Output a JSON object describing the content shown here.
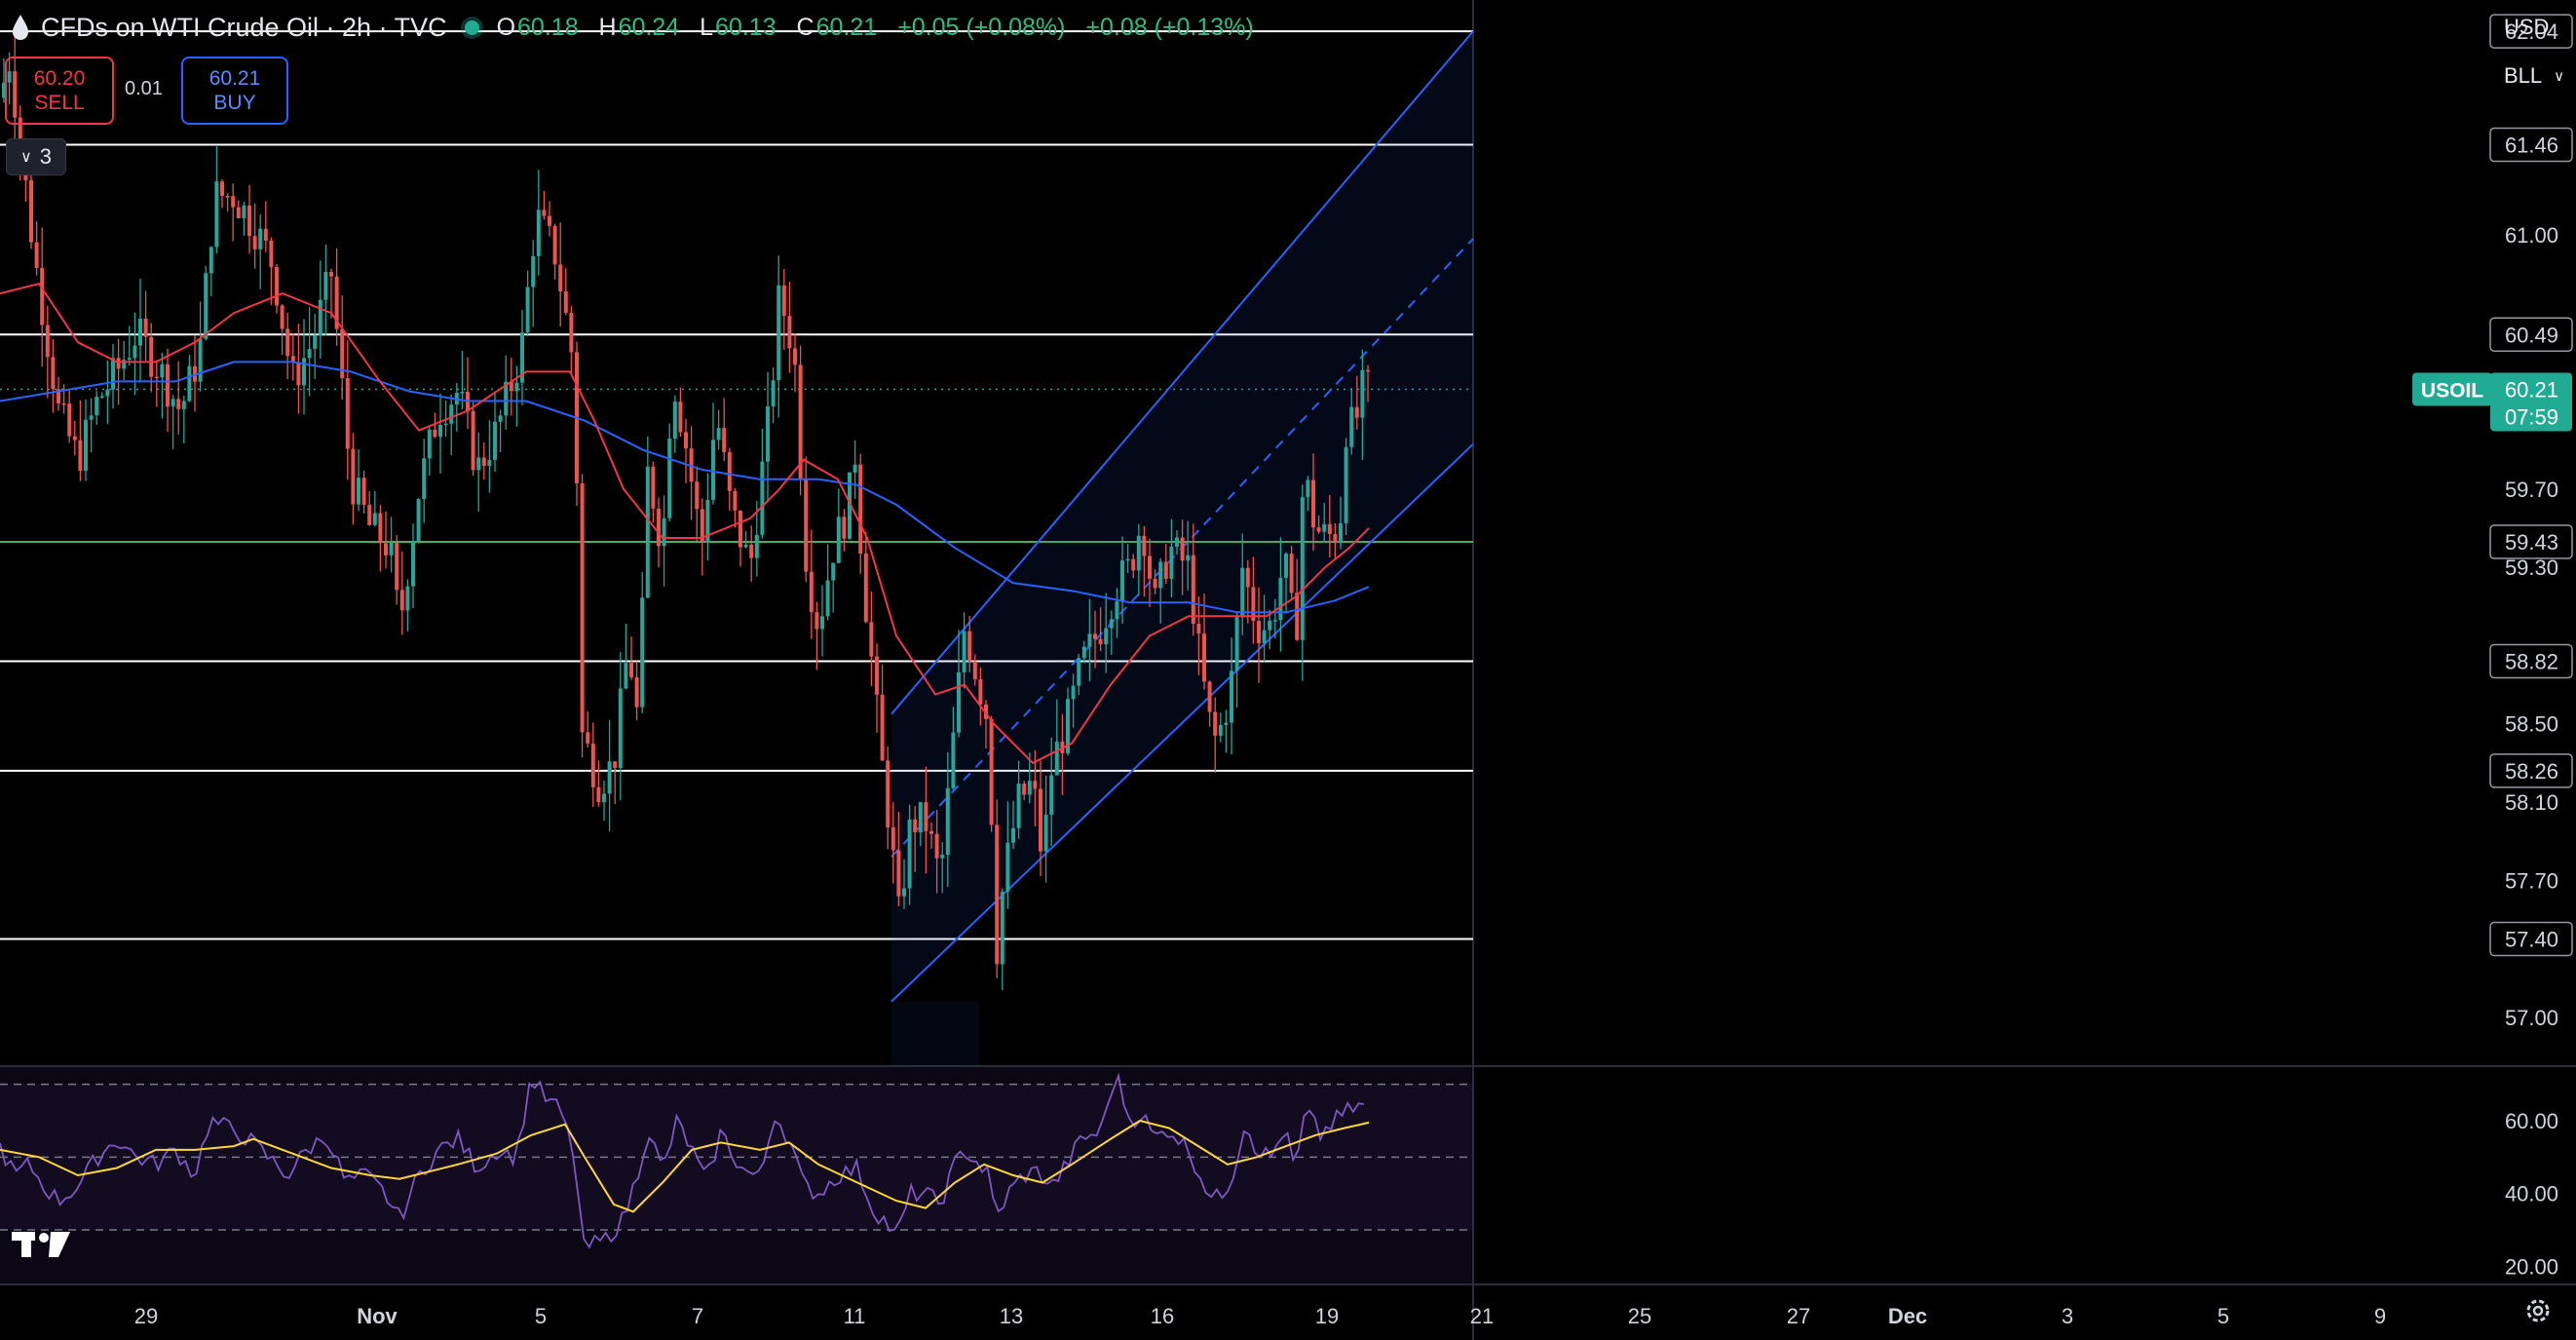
{
  "header": {
    "title": "CFDs on WTI Crude Oil · 2h · TVC",
    "ohlc": [
      {
        "k": "O",
        "v": "60.18"
      },
      {
        "k": "H",
        "v": "60.24"
      },
      {
        "k": "L",
        "v": "60.13"
      },
      {
        "k": "C",
        "v": "60.21"
      }
    ],
    "change": "+0.05 (+0.08%)",
    "change2": "+0.08 (+0.13%)"
  },
  "trade": {
    "sell_price": "60.20",
    "sell_label": "SELL",
    "buy_price": "60.21",
    "buy_label": "BUY",
    "spread": "0.01"
  },
  "indicators_collapse": {
    "count": "3"
  },
  "currency_menu": {
    "currency": "USD",
    "unit": "BLL"
  },
  "colors": {
    "up": "#26a69a",
    "down": "#ef5350",
    "ema_fast": "#f23645",
    "ema_slow": "#2962ff",
    "channel": "#2962ff",
    "rsi": "#7e57c2",
    "rsi_ma": "#fdd835",
    "price_badge": "#22ab94"
  },
  "icons": {
    "logo": "tradingview-logo-icon",
    "settings": "gear-icon",
    "symbol": "oil-drop-icon"
  },
  "chart_data": {
    "type": "candlestick",
    "symbol": "USOIL",
    "interval": "2h",
    "last_price": 60.21,
    "countdown": "07:59",
    "ylim": [
      56.75,
      62.2
    ],
    "y_ticks": [
      "62.04",
      "61.46",
      "61.00",
      "60.49",
      "59.70",
      "59.43",
      "59.30",
      "58.82",
      "58.50",
      "58.26",
      "58.10",
      "57.70",
      "57.40",
      "57.00"
    ],
    "x_ticks": [
      "29",
      "Nov",
      "5",
      "7",
      "11",
      "13",
      "16",
      "19",
      "21",
      "25",
      "27",
      "Dec",
      "3",
      "5",
      "9"
    ],
    "horizontal_levels": [
      {
        "value": 62.04,
        "color": "#ffffff"
      },
      {
        "value": 61.46,
        "color": "#ffffff"
      },
      {
        "value": 60.49,
        "color": "#ffffff"
      },
      {
        "value": 59.43,
        "color": "#4caf50"
      },
      {
        "value": 58.82,
        "color": "#ffffff"
      },
      {
        "value": 58.26,
        "color": "#ffffff"
      },
      {
        "value": 57.4,
        "color": "#ffffff"
      }
    ],
    "price_path": [
      [
        0,
        61.7
      ],
      [
        10,
        61.9
      ],
      [
        35,
        60.9
      ],
      [
        60,
        60.1
      ],
      [
        80,
        59.85
      ],
      [
        100,
        60.15
      ],
      [
        120,
        60.3
      ],
      [
        140,
        60.5
      ],
      [
        165,
        60.3
      ],
      [
        185,
        60.1
      ],
      [
        205,
        60.4
      ],
      [
        220,
        61.2
      ],
      [
        240,
        61.2
      ],
      [
        260,
        61.05
      ],
      [
        280,
        60.85
      ],
      [
        300,
        60.25
      ],
      [
        320,
        60.45
      ],
      [
        340,
        60.8
      ],
      [
        360,
        59.75
      ],
      [
        380,
        59.5
      ],
      [
        400,
        59.4
      ],
      [
        410,
        59.0
      ],
      [
        430,
        59.7
      ],
      [
        450,
        60.1
      ],
      [
        470,
        60.2
      ],
      [
        490,
        59.8
      ],
      [
        510,
        60.0
      ],
      [
        535,
        60.4
      ],
      [
        550,
        61.1
      ],
      [
        570,
        60.9
      ],
      [
        590,
        60.3
      ],
      [
        597,
        58.45
      ],
      [
        615,
        58.2
      ],
      [
        630,
        58.3
      ],
      [
        645,
        58.9
      ],
      [
        655,
        58.5
      ],
      [
        665,
        59.8
      ],
      [
        680,
        59.4
      ],
      [
        690,
        60.3
      ],
      [
        705,
        59.9
      ],
      [
        720,
        59.4
      ],
      [
        735,
        60.1
      ],
      [
        750,
        59.6
      ],
      [
        770,
        59.3
      ],
      [
        790,
        60.1
      ],
      [
        800,
        60.7
      ],
      [
        815,
        60.4
      ],
      [
        828,
        59.3
      ],
      [
        840,
        59.0
      ],
      [
        855,
        59.4
      ],
      [
        870,
        59.6
      ],
      [
        878,
        59.9
      ],
      [
        885,
        59.3
      ],
      [
        895,
        58.8
      ],
      [
        905,
        58.3
      ],
      [
        915,
        57.9
      ],
      [
        922,
        57.5
      ],
      [
        935,
        58.0
      ],
      [
        950,
        58.0
      ],
      [
        965,
        57.7
      ],
      [
        980,
        58.5
      ],
      [
        990,
        59.0
      ],
      [
        1005,
        58.7
      ],
      [
        1015,
        58.5
      ],
      [
        1022,
        57.3
      ],
      [
        1030,
        57.7
      ],
      [
        1045,
        58.1
      ],
      [
        1060,
        58.2
      ],
      [
        1070,
        57.8
      ],
      [
        1080,
        58.3
      ],
      [
        1095,
        58.5
      ],
      [
        1110,
        58.8
      ],
      [
        1130,
        59.0
      ],
      [
        1145,
        59.2
      ],
      [
        1160,
        59.3
      ],
      [
        1172,
        59.55
      ],
      [
        1185,
        59.1
      ],
      [
        1200,
        59.4
      ],
      [
        1220,
        59.3
      ],
      [
        1232,
        58.8
      ],
      [
        1245,
        58.4
      ],
      [
        1255,
        58.5
      ],
      [
        1265,
        58.75
      ],
      [
        1275,
        59.3
      ],
      [
        1290,
        59.0
      ],
      [
        1305,
        59.0
      ],
      [
        1318,
        59.35
      ],
      [
        1330,
        58.9
      ],
      [
        1338,
        59.8
      ],
      [
        1350,
        59.5
      ],
      [
        1362,
        59.45
      ],
      [
        1375,
        59.5
      ],
      [
        1382,
        60.05
      ],
      [
        1390,
        60.0
      ],
      [
        1398,
        60.2
      ],
      [
        1405,
        60.21
      ]
    ],
    "ema_fast": [
      [
        0,
        60.7
      ],
      [
        40,
        60.75
      ],
      [
        80,
        60.45
      ],
      [
        120,
        60.35
      ],
      [
        160,
        60.35
      ],
      [
        200,
        60.45
      ],
      [
        240,
        60.6
      ],
      [
        290,
        60.7
      ],
      [
        340,
        60.6
      ],
      [
        390,
        60.25
      ],
      [
        430,
        60.0
      ],
      [
        480,
        60.1
      ],
      [
        540,
        60.3
      ],
      [
        585,
        60.3
      ],
      [
        610,
        60.05
      ],
      [
        640,
        59.7
      ],
      [
        680,
        59.45
      ],
      [
        720,
        59.45
      ],
      [
        770,
        59.55
      ],
      [
        800,
        59.7
      ],
      [
        825,
        59.85
      ],
      [
        860,
        59.75
      ],
      [
        890,
        59.45
      ],
      [
        920,
        58.95
      ],
      [
        960,
        58.65
      ],
      [
        990,
        58.7
      ],
      [
        1020,
        58.5
      ],
      [
        1060,
        58.3
      ],
      [
        1100,
        58.4
      ],
      [
        1140,
        58.7
      ],
      [
        1180,
        58.95
      ],
      [
        1220,
        59.05
      ],
      [
        1260,
        59.05
      ],
      [
        1300,
        59.05
      ],
      [
        1330,
        59.15
      ],
      [
        1360,
        59.3
      ],
      [
        1385,
        59.4
      ],
      [
        1405,
        59.5
      ]
    ],
    "ema_slow": [
      [
        0,
        60.15
      ],
      [
        60,
        60.2
      ],
      [
        120,
        60.25
      ],
      [
        180,
        60.25
      ],
      [
        240,
        60.35
      ],
      [
        300,
        60.35
      ],
      [
        360,
        60.3
      ],
      [
        420,
        60.2
      ],
      [
        480,
        60.15
      ],
      [
        540,
        60.15
      ],
      [
        600,
        60.05
      ],
      [
        660,
        59.9
      ],
      [
        720,
        59.8
      ],
      [
        780,
        59.75
      ],
      [
        840,
        59.75
      ],
      [
        880,
        59.72
      ],
      [
        920,
        59.62
      ],
      [
        980,
        59.4
      ],
      [
        1040,
        59.22
      ],
      [
        1100,
        59.18
      ],
      [
        1160,
        59.12
      ],
      [
        1220,
        59.12
      ],
      [
        1270,
        59.07
      ],
      [
        1320,
        59.07
      ],
      [
        1370,
        59.13
      ],
      [
        1405,
        59.2
      ]
    ],
    "channel": {
      "start_x": 915,
      "end_x": 1512,
      "upper": [
        58.55,
        62.04
      ],
      "middle": [
        57.82,
        60.98
      ],
      "lower": [
        57.08,
        59.93
      ]
    },
    "rsi": {
      "ylim": [
        15,
        75
      ],
      "levels": [
        70,
        50,
        30
      ],
      "y_ticks": [
        "60.00",
        "40.00",
        "20.00"
      ],
      "values": [
        [
          0,
          53
        ],
        [
          15,
          45
        ],
        [
          30,
          48
        ],
        [
          45,
          42
        ],
        [
          60,
          38
        ],
        [
          80,
          42
        ],
        [
          100,
          50
        ],
        [
          120,
          55
        ],
        [
          140,
          50
        ],
        [
          160,
          48
        ],
        [
          180,
          52
        ],
        [
          200,
          45
        ],
        [
          215,
          60
        ],
        [
          235,
          58
        ],
        [
          255,
          55
        ],
        [
          275,
          50
        ],
        [
          295,
          45
        ],
        [
          315,
          52
        ],
        [
          335,
          56
        ],
        [
          355,
          43
        ],
        [
          375,
          45
        ],
        [
          395,
          40
        ],
        [
          410,
          33
        ],
        [
          430,
          45
        ],
        [
          450,
          52
        ],
        [
          470,
          55
        ],
        [
          490,
          47
        ],
        [
          510,
          52
        ],
        [
          530,
          50
        ],
        [
          545,
          72
        ],
        [
          560,
          66
        ],
        [
          575,
          63
        ],
        [
          590,
          50
        ],
        [
          598,
          25
        ],
        [
          620,
          27
        ],
        [
          640,
          33
        ],
        [
          655,
          46
        ],
        [
          665,
          58
        ],
        [
          680,
          46
        ],
        [
          695,
          60
        ],
        [
          710,
          52
        ],
        [
          725,
          43
        ],
        [
          740,
          57
        ],
        [
          760,
          47
        ],
        [
          780,
          44
        ],
        [
          795,
          62
        ],
        [
          810,
          55
        ],
        [
          825,
          42
        ],
        [
          840,
          40
        ],
        [
          860,
          45
        ],
        [
          880,
          47
        ],
        [
          895,
          36
        ],
        [
          910,
          32
        ],
        [
          920,
          28
        ],
        [
          935,
          40
        ],
        [
          950,
          40
        ],
        [
          965,
          37
        ],
        [
          980,
          48
        ],
        [
          990,
          52
        ],
        [
          1005,
          48
        ],
        [
          1015,
          45
        ],
        [
          1022,
          33
        ],
        [
          1035,
          40
        ],
        [
          1050,
          45
        ],
        [
          1065,
          46
        ],
        [
          1080,
          42
        ],
        [
          1095,
          48
        ],
        [
          1110,
          55
        ],
        [
          1130,
          57
        ],
        [
          1145,
          73
        ],
        [
          1160,
          60
        ],
        [
          1172,
          62
        ],
        [
          1185,
          55
        ],
        [
          1200,
          58
        ],
        [
          1220,
          52
        ],
        [
          1232,
          45
        ],
        [
          1245,
          38
        ],
        [
          1255,
          40
        ],
        [
          1265,
          45
        ],
        [
          1278,
          60
        ],
        [
          1290,
          52
        ],
        [
          1305,
          50
        ],
        [
          1318,
          58
        ],
        [
          1330,
          46
        ],
        [
          1340,
          63
        ],
        [
          1355,
          56
        ],
        [
          1370,
          60
        ],
        [
          1385,
          63
        ],
        [
          1398,
          64
        ],
        [
          1405,
          65
        ]
      ],
      "ma": [
        [
          0,
          52
        ],
        [
          40,
          50
        ],
        [
          80,
          45
        ],
        [
          120,
          47
        ],
        [
          160,
          52
        ],
        [
          200,
          52
        ],
        [
          240,
          53
        ],
        [
          260,
          55
        ],
        [
          300,
          51
        ],
        [
          340,
          47
        ],
        [
          380,
          45
        ],
        [
          410,
          44
        ],
        [
          440,
          46
        ],
        [
          470,
          48
        ],
        [
          510,
          51
        ],
        [
          545,
          56
        ],
        [
          580,
          59
        ],
        [
          600,
          50
        ],
        [
          630,
          37
        ],
        [
          650,
          35
        ],
        [
          680,
          43
        ],
        [
          710,
          52
        ],
        [
          740,
          54
        ],
        [
          780,
          52
        ],
        [
          810,
          54
        ],
        [
          840,
          48
        ],
        [
          880,
          43
        ],
        [
          920,
          38
        ],
        [
          950,
          36
        ],
        [
          980,
          43
        ],
        [
          1010,
          48
        ],
        [
          1040,
          45
        ],
        [
          1070,
          43
        ],
        [
          1100,
          48
        ],
        [
          1140,
          55
        ],
        [
          1170,
          60
        ],
        [
          1200,
          58
        ],
        [
          1230,
          53
        ],
        [
          1260,
          48
        ],
        [
          1290,
          50
        ],
        [
          1320,
          53
        ],
        [
          1350,
          56
        ],
        [
          1380,
          58
        ],
        [
          1405,
          59.5
        ]
      ]
    }
  }
}
